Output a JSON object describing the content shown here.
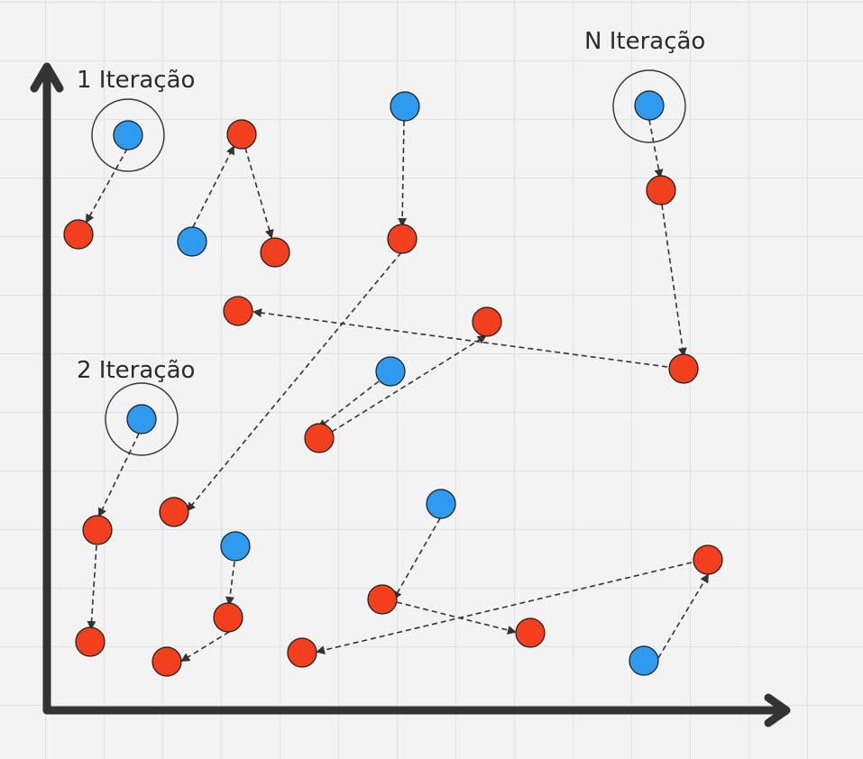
{
  "labels": {
    "first": "1 Iteração",
    "second": "2 Iteração",
    "nth": "N Iteração"
  },
  "colors": {
    "background": "#f3f3f3",
    "grid": "#e2e2e2",
    "axis": "#333333",
    "blue_node": "#2e9bf0",
    "red_node": "#f2401f",
    "arrow": "#333333"
  }
}
